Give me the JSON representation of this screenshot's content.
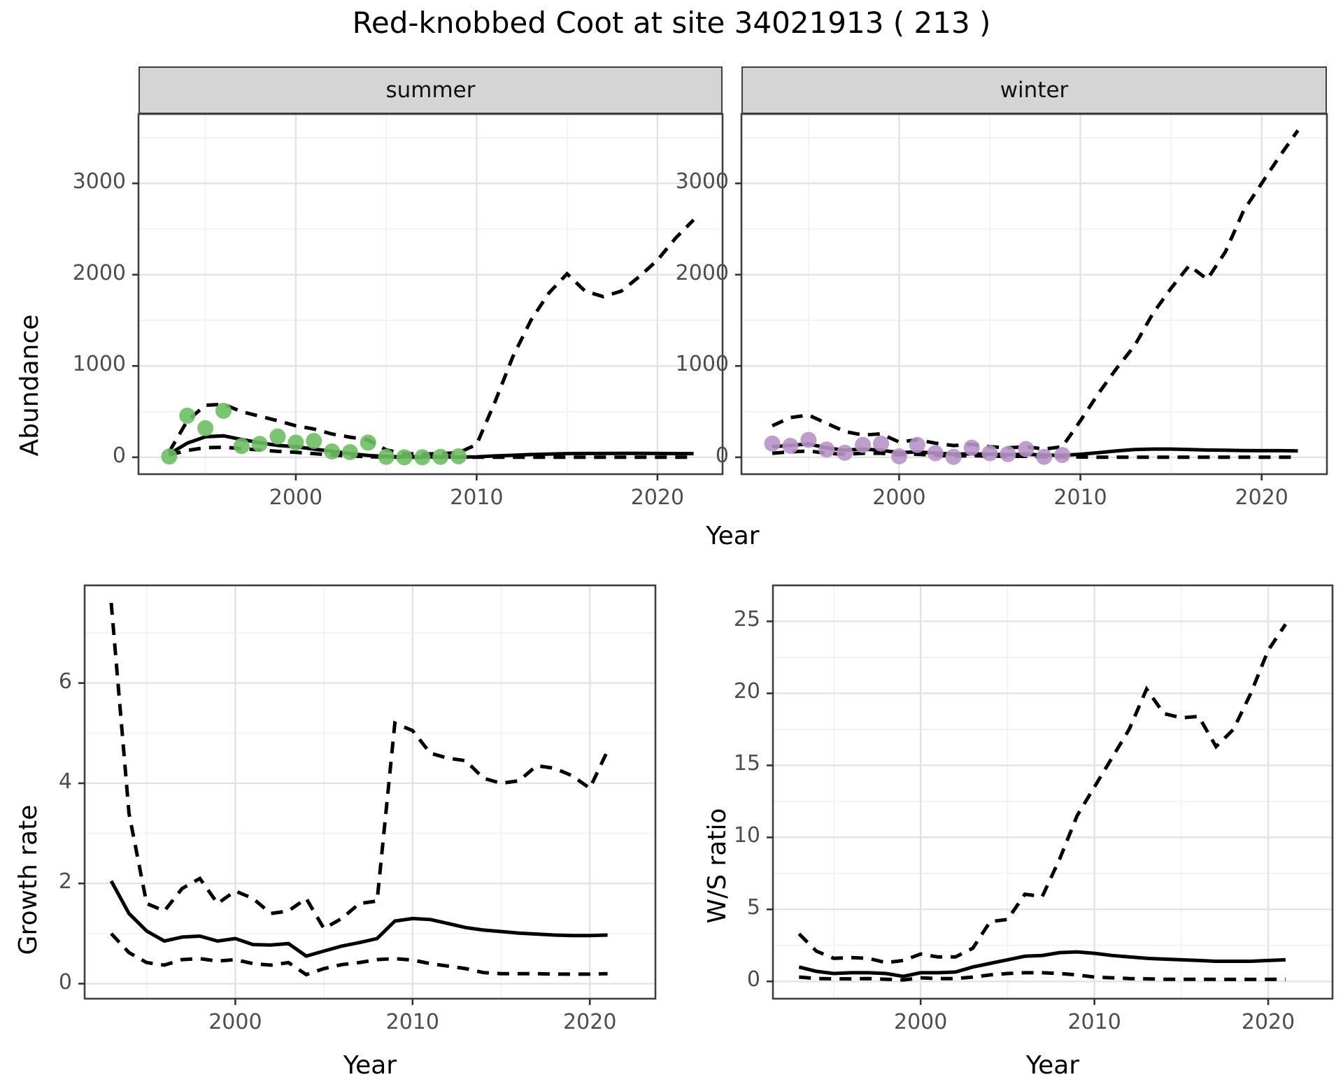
{
  "labels": {
    "title": "Red-knobbed Coot at site 34021913 ( 213 )",
    "abundance_axis": "Abundance",
    "growth_axis": "Growth rate",
    "ws_axis": "W/S ratio",
    "year_axis_top": "Year",
    "year_axis_bottom_left": "Year",
    "year_axis_bottom_right": "Year"
  },
  "colors": {
    "summer_points": "#6dbf63",
    "winter_points": "#b793c7",
    "line": "#000000",
    "grid_major": "#e3e3e3",
    "grid_minor": "#f1f1f1",
    "panel_border": "#3f3f3f",
    "tick_text": "#4d4d4d",
    "strip_bg": "#d5d5d5"
  },
  "chart_data": [
    {
      "id": "abundance-summer",
      "type": "line",
      "strip": "summer",
      "ylabel": "Abundance",
      "xlabel": "Year",
      "xlim": [
        1991.3,
        2023.6
      ],
      "ylim": [
        -185,
        3760
      ],
      "xticks": [
        2000,
        2010,
        2020
      ],
      "xminor": [
        1995,
        2005,
        2015
      ],
      "yticks": [
        0,
        1000,
        2000,
        3000
      ],
      "yminor": [
        500,
        1500,
        2500,
        3500
      ],
      "obs_years": [
        1993,
        1994,
        1995,
        1996,
        1997,
        1998,
        1999,
        2000,
        2001,
        2002,
        2003,
        2004,
        2005,
        2006,
        2007,
        2008,
        2009
      ],
      "obs": [
        8,
        456,
        319,
        509,
        123,
        146,
        228,
        161,
        179,
        64,
        56,
        161,
        5,
        0,
        0,
        5,
        10
      ],
      "fit_years": [
        1993,
        1994,
        1995,
        1996,
        1997,
        1998,
        1999,
        2000,
        2001,
        2002,
        2003,
        2004,
        2005,
        2006,
        2007,
        2008,
        2009,
        2010,
        2011,
        2012,
        2013,
        2014,
        2015,
        2016,
        2017,
        2018,
        2019,
        2020,
        2021,
        2022
      ],
      "fit": [
        35,
        155,
        225,
        235,
        195,
        160,
        130,
        115,
        90,
        65,
        40,
        20,
        8,
        5,
        5,
        5,
        3,
        5,
        15,
        22,
        30,
        35,
        40,
        42,
        42,
        43,
        43,
        42,
        40,
        40
      ],
      "hi": [
        60,
        400,
        570,
        580,
        500,
        450,
        400,
        345,
        310,
        255,
        220,
        190,
        80,
        40,
        35,
        40,
        50,
        140,
        600,
        1100,
        1500,
        1800,
        2010,
        1820,
        1760,
        1820,
        1980,
        2160,
        2400,
        2600
      ],
      "lo": [
        25,
        75,
        105,
        110,
        95,
        80,
        65,
        55,
        40,
        25,
        15,
        5,
        2,
        0,
        0,
        0,
        0,
        0,
        0,
        0,
        0,
        0,
        0,
        0,
        0,
        0,
        0,
        0,
        0,
        0
      ]
    },
    {
      "id": "abundance-winter",
      "type": "line",
      "strip": "winter",
      "ylabel": "Abundance",
      "xlabel": "Year",
      "xlim": [
        1991.3,
        2023.6
      ],
      "ylim": [
        -185,
        3760
      ],
      "xticks": [
        2000,
        2010,
        2020
      ],
      "xminor": [
        1995,
        2005,
        2015
      ],
      "yticks": [
        0,
        1000,
        2000,
        3000
      ],
      "yminor": [
        500,
        1500,
        2500,
        3500
      ],
      "obs_years": [
        1993,
        1994,
        1995,
        1996,
        1997,
        1998,
        1999,
        2000,
        2001,
        2002,
        2003,
        2004,
        2005,
        2006,
        2007,
        2008,
        2009
      ],
      "obs": [
        150,
        125,
        190,
        85,
        50,
        135,
        150,
        10,
        135,
        45,
        5,
        105,
        45,
        35,
        90,
        5,
        25
      ],
      "fit_years": [
        1993,
        1994,
        1995,
        1996,
        1997,
        1998,
        1999,
        2000,
        2001,
        2002,
        2003,
        2004,
        2005,
        2006,
        2007,
        2008,
        2009,
        2010,
        2011,
        2012,
        2013,
        2014,
        2015,
        2016,
        2017,
        2018,
        2019,
        2020,
        2021,
        2022
      ],
      "fit": [
        115,
        130,
        146,
        103,
        77,
        90,
        77,
        51,
        59,
        45,
        33,
        38,
        33,
        28,
        33,
        23,
        21,
        33,
        51,
        69,
        85,
        90,
        90,
        85,
        79,
        77,
        74,
        72,
        72,
        70
      ],
      "hi": [
        345,
        435,
        462,
        372,
        282,
        244,
        256,
        167,
        192,
        154,
        128,
        141,
        115,
        103,
        115,
        90,
        115,
        400,
        700,
        975,
        1225,
        1575,
        1850,
        2100,
        1950,
        2250,
        2700,
        3000,
        3300,
        3580
      ],
      "lo": [
        44,
        59,
        69,
        44,
        33,
        44,
        44,
        26,
        33,
        21,
        13,
        18,
        13,
        10,
        10,
        5,
        5,
        3,
        0,
        0,
        0,
        0,
        0,
        0,
        0,
        0,
        0,
        0,
        0,
        0
      ]
    },
    {
      "id": "growth-rate",
      "type": "line",
      "strip": null,
      "ylabel": "Growth rate",
      "xlabel": "Year",
      "xlim": [
        1991.5,
        2023.7
      ],
      "ylim": [
        -0.3,
        7.95
      ],
      "xticks": [
        2000,
        2010,
        2020
      ],
      "xminor": [
        1995,
        2005,
        2015
      ],
      "yticks": [
        0,
        2,
        4,
        6
      ],
      "yminor": [
        1,
        3,
        5,
        7
      ],
      "obs_years": [],
      "obs": [],
      "fit_years": [
        1993,
        1994,
        1995,
        1996,
        1997,
        1998,
        1999,
        2000,
        2001,
        2002,
        2003,
        2004,
        2005,
        2006,
        2007,
        2008,
        2009,
        2010,
        2011,
        2012,
        2013,
        2014,
        2015,
        2016,
        2017,
        2018,
        2019,
        2020,
        2021
      ],
      "fit": [
        2.05,
        1.4,
        1.05,
        0.85,
        0.93,
        0.95,
        0.85,
        0.9,
        0.78,
        0.77,
        0.8,
        0.55,
        0.65,
        0.75,
        0.82,
        0.9,
        1.25,
        1.3,
        1.28,
        1.2,
        1.12,
        1.07,
        1.04,
        1.01,
        0.99,
        0.97,
        0.96,
        0.96,
        0.97
      ],
      "hi": [
        7.6,
        3.4,
        1.6,
        1.45,
        1.9,
        2.1,
        1.6,
        1.85,
        1.7,
        1.4,
        1.45,
        1.7,
        1.1,
        1.3,
        1.6,
        1.65,
        5.2,
        5.05,
        4.6,
        4.5,
        4.45,
        4.1,
        4.0,
        4.05,
        4.35,
        4.3,
        4.15,
        3.9,
        4.65
      ],
      "lo": [
        1.0,
        0.62,
        0.42,
        0.37,
        0.48,
        0.5,
        0.45,
        0.48,
        0.4,
        0.37,
        0.42,
        0.18,
        0.3,
        0.38,
        0.42,
        0.48,
        0.5,
        0.47,
        0.4,
        0.35,
        0.3,
        0.22,
        0.2,
        0.2,
        0.2,
        0.19,
        0.19,
        0.19,
        0.2
      ]
    },
    {
      "id": "ws-ratio",
      "type": "line",
      "strip": null,
      "ylabel": "W/S ratio",
      "xlabel": "Year",
      "xlim": [
        1991.5,
        2023.7
      ],
      "ylim": [
        -1.2,
        27.5
      ],
      "xticks": [
        2000,
        2010,
        2020
      ],
      "xminor": [
        1995,
        2005,
        2015
      ],
      "yticks": [
        0,
        5,
        10,
        15,
        20,
        25
      ],
      "yminor": [
        2.5,
        7.5,
        12.5,
        17.5,
        22.5
      ],
      "obs_years": [],
      "obs": [],
      "fit_years": [
        1993,
        1994,
        1995,
        1996,
        1997,
        1998,
        1999,
        2000,
        2001,
        2002,
        2003,
        2004,
        2005,
        2006,
        2007,
        2008,
        2009,
        2010,
        2011,
        2012,
        2013,
        2014,
        2015,
        2016,
        2017,
        2018,
        2019,
        2020,
        2021
      ],
      "fit": [
        1.0,
        0.7,
        0.55,
        0.6,
        0.6,
        0.55,
        0.35,
        0.6,
        0.6,
        0.65,
        1.0,
        1.25,
        1.5,
        1.75,
        1.8,
        2.0,
        2.05,
        1.95,
        1.8,
        1.7,
        1.6,
        1.55,
        1.5,
        1.45,
        1.4,
        1.4,
        1.4,
        1.45,
        1.5
      ],
      "hi": [
        3.3,
        2.1,
        1.6,
        1.65,
        1.6,
        1.3,
        1.45,
        1.9,
        1.7,
        1.7,
        2.3,
        4.15,
        4.3,
        6.05,
        5.9,
        8.5,
        11.5,
        13.5,
        15.5,
        17.5,
        20.3,
        18.6,
        18.3,
        18.4,
        16.3,
        17.5,
        20.0,
        23.0,
        24.8
      ],
      "lo": [
        0.3,
        0.2,
        0.18,
        0.18,
        0.2,
        0.15,
        0.1,
        0.25,
        0.2,
        0.2,
        0.3,
        0.45,
        0.55,
        0.6,
        0.6,
        0.55,
        0.45,
        0.3,
        0.25,
        0.2,
        0.18,
        0.15,
        0.15,
        0.15,
        0.14,
        0.14,
        0.14,
        0.14,
        0.15
      ]
    }
  ]
}
